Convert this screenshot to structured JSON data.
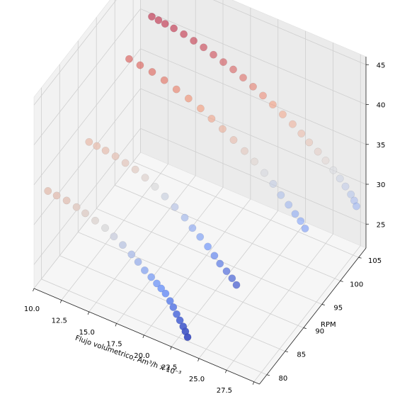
{
  "chart_data": {
    "type": "scatter",
    "projection": "3d",
    "grid": true,
    "colormap": "coolwarm",
    "colors": {
      "pane": "#f2f2f2",
      "grid": "#cfcfcf",
      "low": "#3b4cc0",
      "high": "#b40426"
    },
    "xlabel": "Flujo volumetrico, Am³/h x 10⁻³",
    "ylabel": "RPM",
    "zlabel": "",
    "xlim": [
      10,
      30.5
    ],
    "ylim": [
      78,
      107
    ],
    "zlim": [
      22,
      46
    ],
    "xticks": [
      "10.0",
      "12.5",
      "15.0",
      "17.5",
      "20.0",
      "22.5",
      "25.0",
      "27.5",
      "30.0"
    ],
    "yticks": [
      "80",
      "85",
      "90",
      "95",
      "100",
      "105"
    ],
    "zticks": [
      "25",
      "30",
      "35",
      "40",
      "45"
    ],
    "series": [
      {
        "rpm": 80,
        "x": [
          10.6,
          11.4,
          12.3,
          13.2,
          14.0,
          14.9,
          15.8,
          16.6,
          17.4,
          18.2,
          18.8,
          19.4,
          20.0,
          20.5,
          20.9,
          21.3,
          21.7,
          22.0,
          22.3,
          22.6,
          22.9,
          23.1,
          23.3
        ],
        "z": [
          33.4,
          33.3,
          33.2,
          32.9,
          32.6,
          32.2,
          31.8,
          31.2,
          30.6,
          29.9,
          29.3,
          28.6,
          28.1,
          27.6,
          27.2,
          26.8,
          26.1,
          25.5,
          24.8,
          24.2,
          23.6,
          23.1,
          22.5
        ]
      },
      {
        "rpm": 90,
        "x": [
          11.0,
          11.7,
          12.5,
          13.4,
          14.3,
          15.2,
          16.1,
          17.0,
          17.9,
          18.8,
          19.7,
          20.4,
          21.1,
          21.8,
          22.4,
          22.9,
          23.5,
          24.0,
          24.4
        ],
        "z": [
          33.9,
          33.8,
          33.7,
          33.5,
          33.2,
          32.9,
          32.4,
          31.8,
          31.1,
          30.3,
          29.5,
          28.6,
          27.9,
          27.1,
          26.3,
          25.6,
          25.0,
          24.4,
          23.8
        ]
      },
      {
        "rpm": 100,
        "x": [
          11.3,
          12.3,
          13.4,
          14.5,
          15.6,
          16.7,
          17.8,
          18.8,
          19.8,
          20.8,
          21.8,
          22.7,
          23.6,
          24.4,
          25.1,
          25.8,
          26.4,
          26.9,
          27.3
        ],
        "z": [
          38.6,
          38.4,
          38.2,
          37.8,
          37.3,
          36.8,
          36.2,
          35.5,
          34.8,
          34.0,
          33.2,
          32.4,
          31.5,
          30.6,
          29.6,
          28.8,
          28.0,
          27.4,
          26.7
        ]
      },
      {
        "rpm": 105,
        "x": [
          11.7,
          12.3,
          12.9,
          13.7,
          14.6,
          15.5,
          16.4,
          17.3,
          18.2,
          19.1,
          20.0,
          20.9,
          21.8,
          22.7,
          23.6,
          24.5,
          25.3,
          26.0,
          26.8,
          27.5,
          28.2,
          28.8,
          29.3,
          29.8,
          30.1,
          30.3
        ],
        "z": [
          41.2,
          41.1,
          41.0,
          40.9,
          40.7,
          40.4,
          40.1,
          39.7,
          39.3,
          38.9,
          38.4,
          37.8,
          37.2,
          36.6,
          35.9,
          35.2,
          34.5,
          33.8,
          33.1,
          32.4,
          31.6,
          30.9,
          30.2,
          29.5,
          28.9,
          28.3
        ]
      }
    ]
  }
}
